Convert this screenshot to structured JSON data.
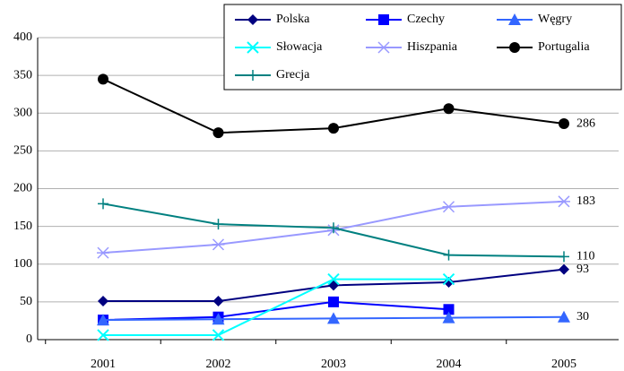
{
  "chart_data": {
    "type": "line",
    "categories": [
      "2001",
      "2002",
      "2003",
      "2004",
      "2005"
    ],
    "ylim": [
      0,
      400
    ],
    "yticks": [
      0,
      50,
      100,
      150,
      200,
      250,
      300,
      350,
      400
    ],
    "grid": true,
    "series": [
      {
        "name": "Polska",
        "color": "#000080",
        "marker": "diamond",
        "values": [
          51,
          51,
          72,
          76,
          93
        ],
        "value_labels": [
          null,
          null,
          null,
          null,
          "93"
        ]
      },
      {
        "name": "Czechy",
        "color": "#0000ff",
        "marker": "square",
        "values": [
          26,
          30,
          50,
          40,
          null
        ]
      },
      {
        "name": "Węgry",
        "color": "#3366ff",
        "marker": "triangle",
        "values": [
          26,
          27,
          28,
          29,
          30
        ],
        "value_labels": [
          null,
          null,
          null,
          null,
          "30"
        ]
      },
      {
        "name": "Słowacja",
        "color": "#00ffff",
        "marker": "x",
        "values": [
          6,
          6,
          80,
          80,
          null
        ]
      },
      {
        "name": "Hiszpania",
        "color": "#9999ff",
        "marker": "asterisk",
        "values": [
          115,
          126,
          145,
          176,
          183
        ],
        "value_labels": [
          null,
          null,
          null,
          null,
          "183"
        ]
      },
      {
        "name": "Portugalia",
        "color": "#000000",
        "marker": "circle",
        "values": [
          345,
          274,
          280,
          306,
          286
        ],
        "value_labels": [
          null,
          null,
          null,
          null,
          "286"
        ]
      },
      {
        "name": "Grecja",
        "color": "#008080",
        "marker": "plus",
        "values": [
          180,
          153,
          148,
          112,
          110
        ],
        "value_labels": [
          null,
          null,
          null,
          null,
          "110"
        ]
      }
    ]
  }
}
